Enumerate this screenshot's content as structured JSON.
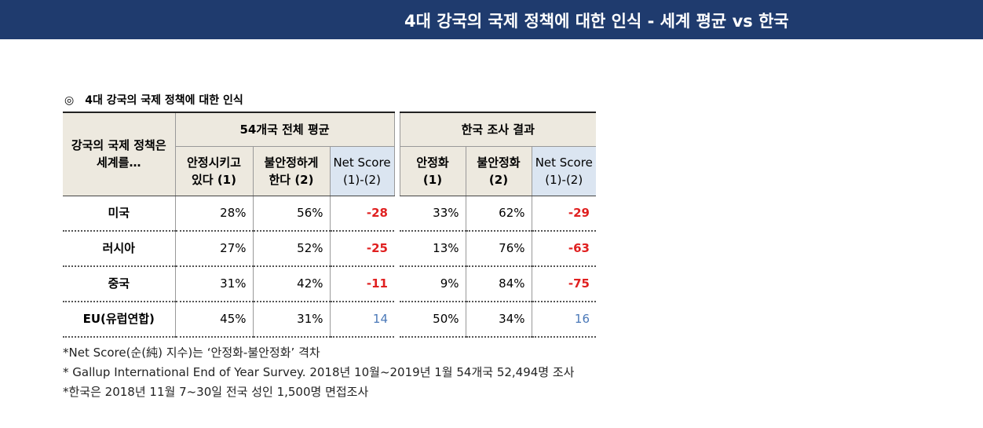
{
  "header": {
    "title": "4대 강국의 국제 정책에 대한 인식 - 세계 평균 vs 한국"
  },
  "section": {
    "marker": "◎",
    "title": "4대 강국의 국제 정책에 대한 인식"
  },
  "table": {
    "row_header": "강국의 국제 정책은\n세계를…",
    "groups": [
      "54개국 전체 평균",
      "한국 조사 결과"
    ],
    "columns": [
      "안정시키고\n있다 (1)",
      "불안정하게\n한다 (2)",
      "Net Score\n(1)-(2)",
      "안정화\n(1)",
      "불안정화\n(2)",
      "Net Score\n(1)-(2)"
    ],
    "rows": [
      [
        "미국",
        "28%",
        "56%",
        "-28",
        "33%",
        "62%",
        "-29"
      ],
      [
        "러시아",
        "27%",
        "52%",
        "-25",
        "13%",
        "76%",
        "-63"
      ],
      [
        "중국",
        "31%",
        "42%",
        "-11",
        "9%",
        "84%",
        "-75"
      ],
      [
        "EU(유럽연합)",
        "45%",
        "31%",
        "14",
        "50%",
        "34%",
        "16"
      ]
    ]
  },
  "footnotes": [
    "*Net Score(순(純) 지수)는 ‘안정화-불안정화’ 격차",
    "* Gallup International End of Year Survey. 2018년 10월~2019년 1월 54개국 52,494명 조사",
    "*한국은 2018년 11월 7~30일 전국 성인 1,500명 면접조사"
  ]
}
